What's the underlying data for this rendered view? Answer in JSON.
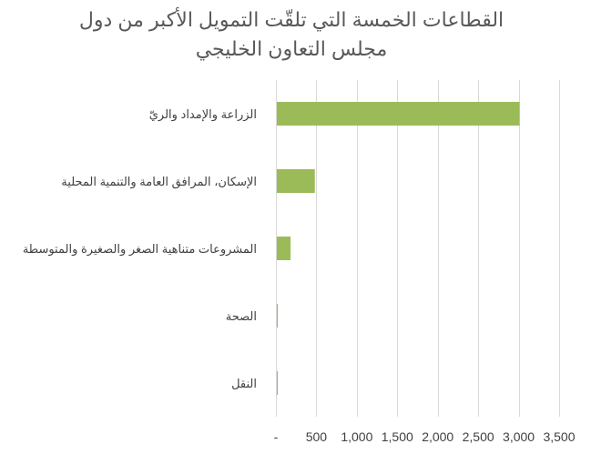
{
  "chart_data": {
    "type": "bar",
    "orientation": "horizontal",
    "title": "القطاعات الخمسة التي تلقّت التمويل الأكبر من دول مجلس التعاون الخليجي",
    "categories": [
      "الزراعة والإمداد والريّ",
      "الإسكان، المرافق العامة والتنمية المحلية",
      "المشروعات متناهية الصغر والصغيرة والمتوسطة",
      "الصحة",
      "النقل"
    ],
    "values": [
      3000,
      470,
      170,
      12,
      12
    ],
    "xlim": [
      0,
      3500
    ],
    "x_ticks": [
      0,
      500,
      1000,
      1500,
      2000,
      2500,
      3000,
      3500
    ],
    "x_tick_labels": [
      "-",
      "500",
      "1,000",
      "1,500",
      "2,000",
      "2,500",
      "3,000",
      "3,500"
    ],
    "grid": true,
    "legend": "none",
    "bar_color": "#9bbb59",
    "grid_color": "#d9d9d9"
  }
}
